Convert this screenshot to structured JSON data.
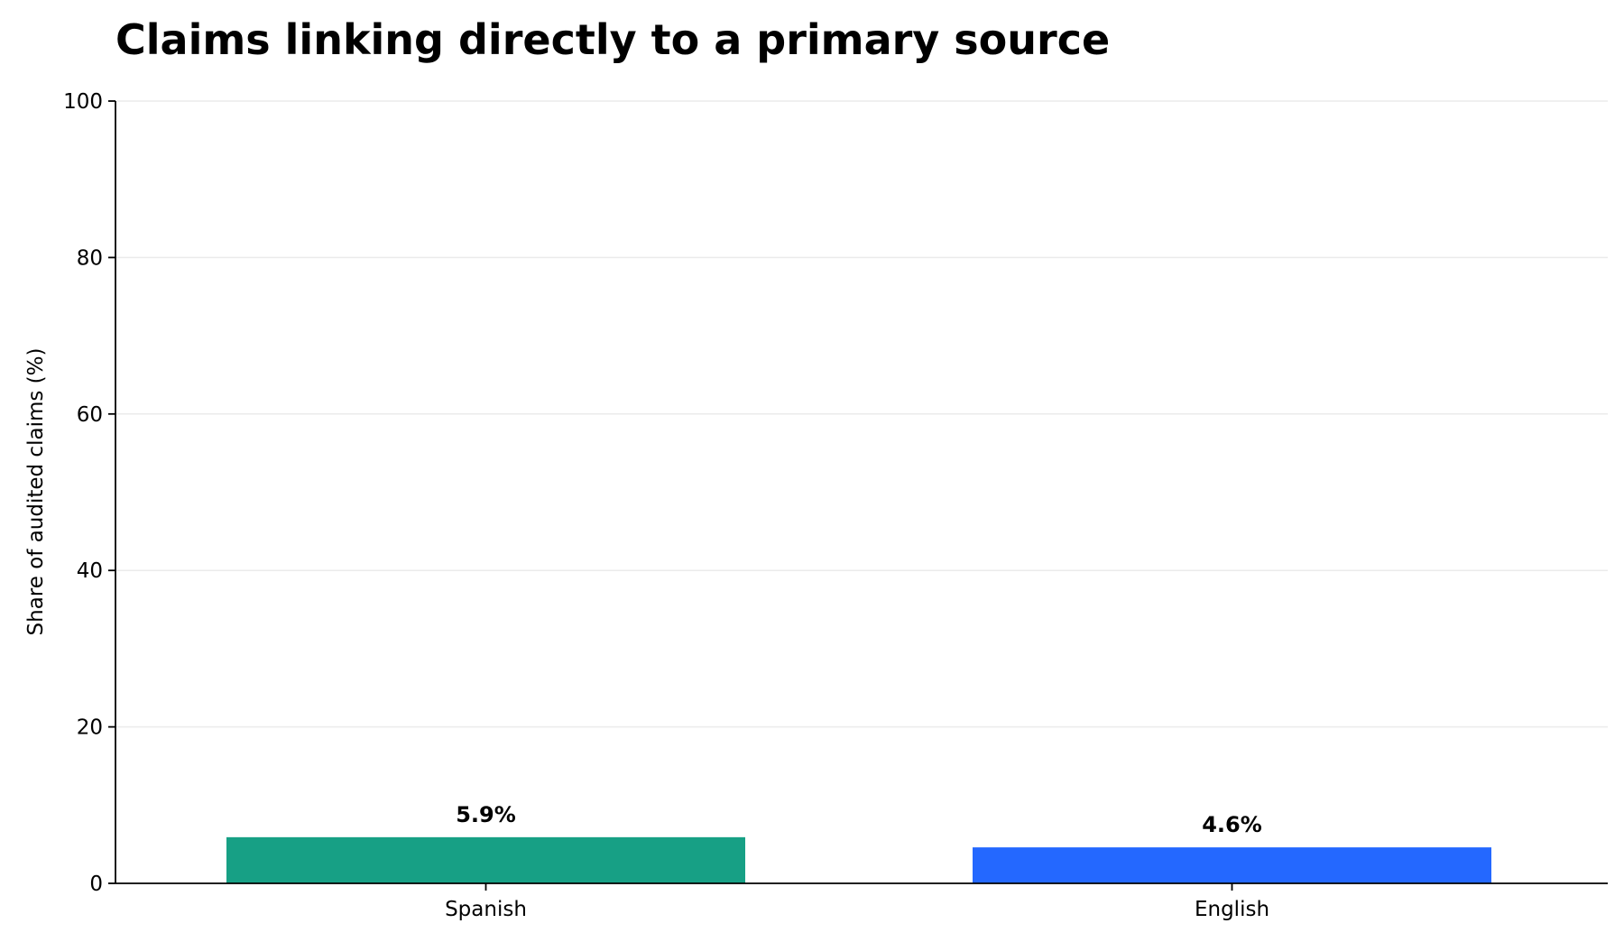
{
  "chart_data": {
    "type": "bar",
    "title": "Claims linking directly to a primary source",
    "xlabel": "",
    "ylabel": "Share of audited claims (%)",
    "categories": [
      "Spanish",
      "English"
    ],
    "values": [
      5.9,
      4.6
    ],
    "value_labels": [
      "5.9%",
      "4.6%"
    ],
    "colors": [
      "#17a085",
      "#2468ff"
    ],
    "ylim": [
      0,
      100
    ],
    "yticks": [
      0,
      20,
      40,
      60,
      80,
      100
    ],
    "grid": "horizontal",
    "legend": "none"
  }
}
